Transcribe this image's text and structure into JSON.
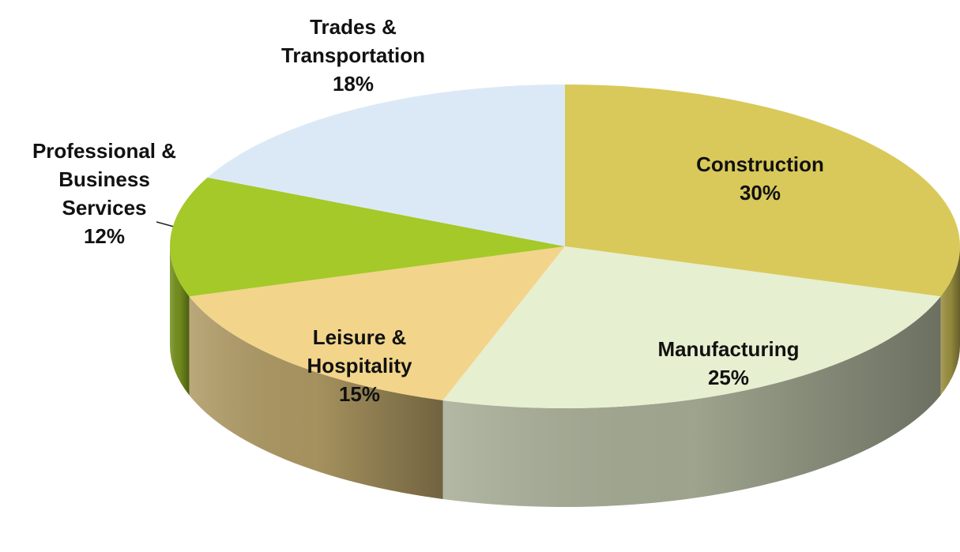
{
  "chart_data": {
    "type": "pie",
    "three_d": true,
    "categories": [
      "Construction",
      "Manufacturing",
      "Leisure &\nHospitality",
      "Professional &\nBusiness\nServices",
      "Trades &\nTransportation"
    ],
    "values": [
      30,
      25,
      15,
      12,
      18
    ],
    "value_labels": [
      "30%",
      "25%",
      "15%",
      "12%",
      "18%"
    ],
    "colors": [
      "#d9c95a",
      "#e6efcf",
      "#f2d58a",
      "#a4c929",
      "#dbe9f7"
    ]
  }
}
